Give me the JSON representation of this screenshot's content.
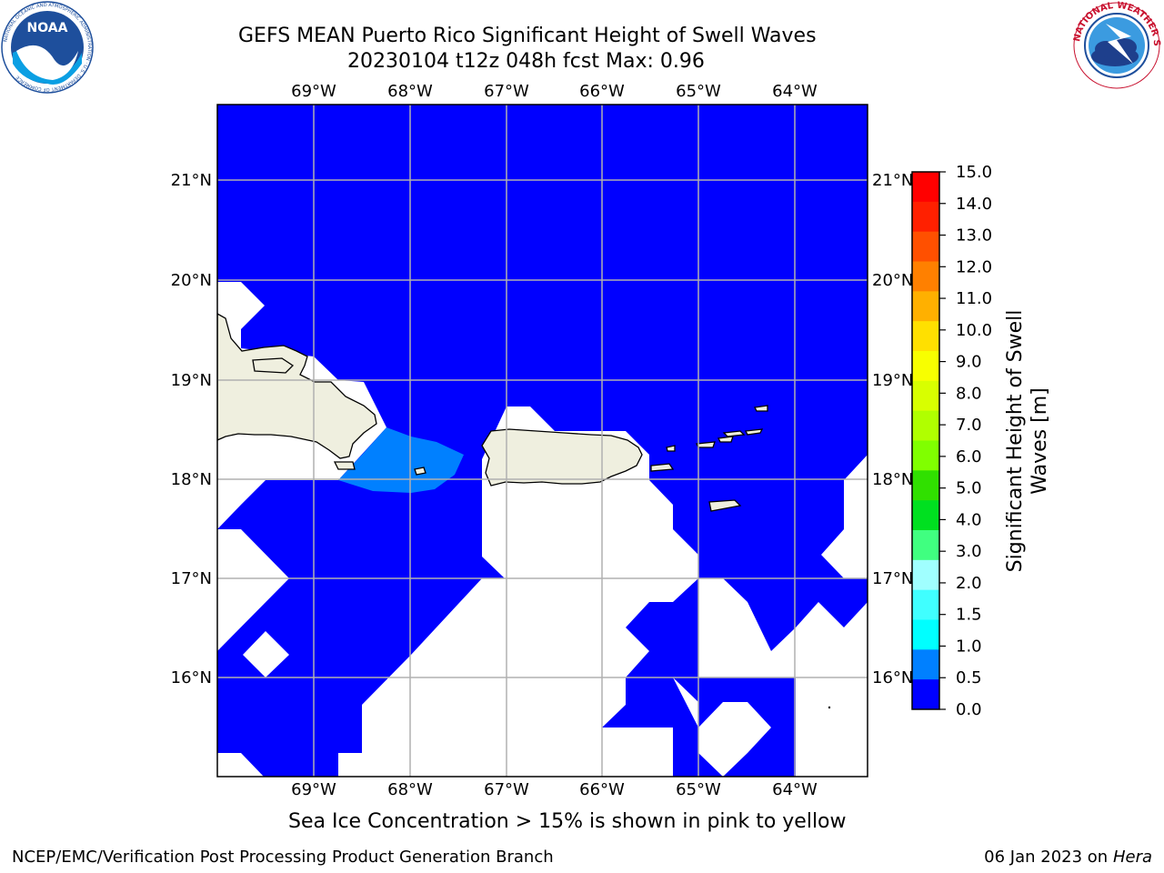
{
  "title_line1": "GEFS MEAN Puerto Rico Significant Height of Swell Waves",
  "title_line2": "20230104 t12z 048h fcst   Max: 0.96",
  "caption": "Sea Ice Concentration > 15% is shown in pink to yellow",
  "footer_left": "NCEP/EMC/Verification Post Processing Product Generation Branch",
  "footer_right_date": "06 Jan 2023 on ",
  "footer_right_host": "Hera",
  "logos": {
    "noaa_text": "NOAA",
    "noaa_ring": "NATIONAL OCEANIC AND ATMOSPHERIC ADMINISTRATION · U.S. DEPARTMENT OF COMMERCE",
    "nws_ring": "NATIONAL WEATHER SERVICE"
  },
  "map": {
    "lon_labels": [
      "69°W",
      "68°W",
      "67°W",
      "66°W",
      "65°W",
      "64°W"
    ],
    "lat_labels": [
      "21°N",
      "20°N",
      "19°N",
      "18°N",
      "17°N",
      "16°N"
    ],
    "colors": {
      "ocean_low": "#0000ff",
      "ocean_mid": "#0080ff",
      "land": "#efefdf",
      "no_data": "#ffffff",
      "grid": "#b0b0b0"
    }
  },
  "colorbar": {
    "label": "Significant Height of Swell Waves [m]",
    "label_line1": "Significant Height of Swell",
    "label_line2": "Waves [m]",
    "ticks": [
      "15.0",
      "14.0",
      "13.0",
      "12.0",
      "11.0",
      "10.0",
      "9.0",
      "8.0",
      "7.0",
      "6.0",
      "5.0",
      "4.0",
      "3.0",
      "2.0",
      "1.5",
      "1.0",
      "0.5",
      "0.0"
    ],
    "colors_top_to_bottom": [
      "#ff0000",
      "#ff2000",
      "#ff5000",
      "#ff8000",
      "#ffb000",
      "#ffe000",
      "#f8ff00",
      "#d8ff00",
      "#b0ff00",
      "#80ff00",
      "#30e000",
      "#00e020",
      "#40ff80",
      "#a0ffff",
      "#40ffff",
      "#00ffff",
      "#0080ff",
      "#0000ff"
    ]
  }
}
